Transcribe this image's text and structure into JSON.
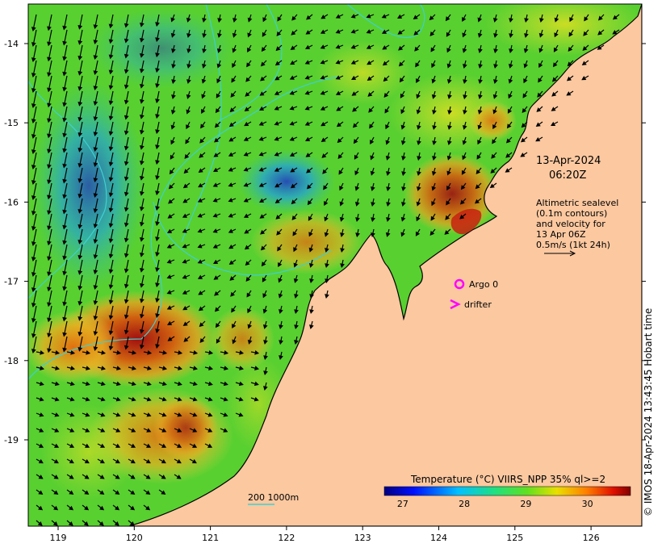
{
  "map": {
    "date": "13-Apr-2024",
    "time": "06:20Z",
    "legend_lines": [
      "Altimetric sealevel",
      "(0.1m contours)",
      "and velocity for",
      "13 Apr 06Z",
      "0.5m/s (1kt 24h)"
    ],
    "argo_label": "Argo 0",
    "drifter_label": "drifter",
    "scale_label": "200  1000m",
    "colorbar_title": "Temperature (°C) VIIRS_NPP 35% ql>=2",
    "colorbar_ticks": [
      "27",
      "28",
      "29",
      "30"
    ],
    "colorbar_range": [
      26.7,
      30.7
    ],
    "credit": "© IMOS 18-Apr-2024 13:43:45 Hobart time",
    "lon_ticks": [
      "119",
      "120",
      "121",
      "122",
      "123",
      "124",
      "125",
      "126"
    ],
    "lat_ticks": [
      "-14",
      "-15",
      "-16",
      "-17",
      "-18",
      "-19"
    ],
    "colors": {
      "land": "#fbc8a0",
      "coast": "#000000",
      "argo": "#ff00ff",
      "drifter": "#ff00ff",
      "contour": "#40d0d0"
    }
  }
}
